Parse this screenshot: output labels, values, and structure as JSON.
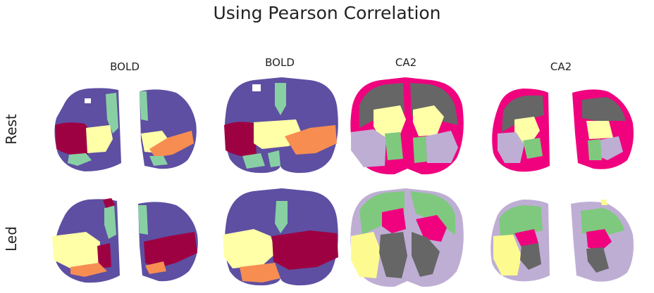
{
  "title": "Using Pearson Correlation",
  "columns": [
    {
      "label": "BOLD"
    },
    {
      "label": "BOLD"
    },
    {
      "label": "CA2"
    },
    {
      "label": "CA2"
    }
  ],
  "rows": [
    {
      "label": "Rest"
    },
    {
      "label": "Led"
    }
  ],
  "colors": {
    "purple": "#5e4fa2",
    "mint": "#88d0a4",
    "yellow": "#ffffa8",
    "crimson": "#9e0142",
    "orange": "#f88d52",
    "magenta": "#f0027f",
    "gray": "#666666",
    "lavender": "#beaed4",
    "green": "#7fc97f",
    "paleyellow": "#fdfb8f"
  }
}
